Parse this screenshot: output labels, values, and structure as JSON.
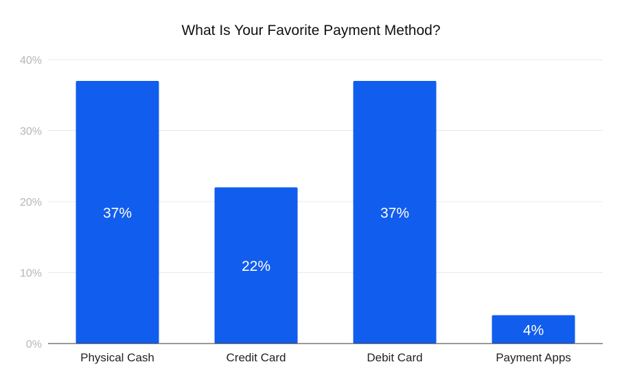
{
  "chart_data": {
    "type": "bar",
    "title": "What Is Your Favorite Payment Method?",
    "categories": [
      "Physical Cash",
      "Credit Card",
      "Debit Card",
      "Payment Apps"
    ],
    "values": [
      37,
      22,
      37,
      4
    ],
    "data_labels": [
      "37%",
      "22%",
      "37%",
      "4%"
    ],
    "ylim": [
      0,
      40
    ],
    "yticks": [
      0,
      10,
      20,
      30,
      40
    ],
    "ytick_labels": [
      "0%",
      "10%",
      "20%",
      "30%",
      "40%"
    ],
    "xlabel": "",
    "ylabel": "",
    "grid": true,
    "legend": "none",
    "bar_color": "#115ded"
  }
}
